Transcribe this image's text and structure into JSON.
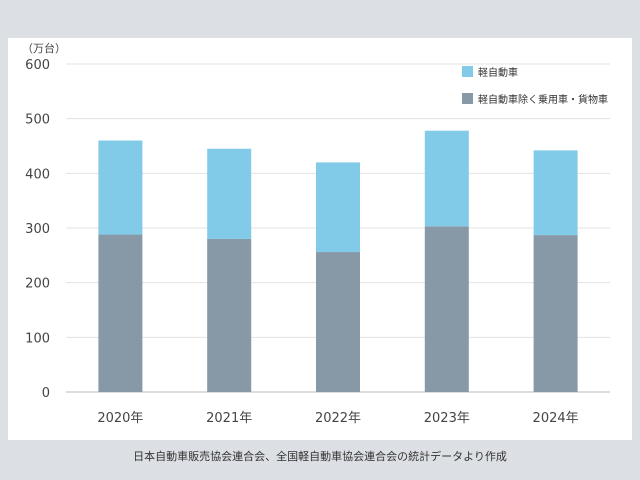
{
  "chart_data": {
    "type": "bar",
    "stacked": true,
    "unit_label": "（万台）",
    "categories": [
      "2020年",
      "2021年",
      "2022年",
      "2023年",
      "2024年"
    ],
    "series": [
      {
        "name": "軽自動車除く乗用車・貨物車",
        "values": [
          288,
          280,
          256,
          303,
          287
        ],
        "color": "#8798a6"
      },
      {
        "name": "軽自動車",
        "values": [
          172,
          165,
          164,
          175,
          155
        ],
        "color": "#82cbe8"
      }
    ],
    "ylim": [
      0,
      600
    ],
    "yticks": [
      "0",
      "100",
      "200",
      "300",
      "400",
      "500",
      "600"
    ],
    "grid": true,
    "legend_position": "top-right"
  },
  "source": "日本自動車販売協会連合会、全国軽自動車協会連合会の統計データより作成"
}
